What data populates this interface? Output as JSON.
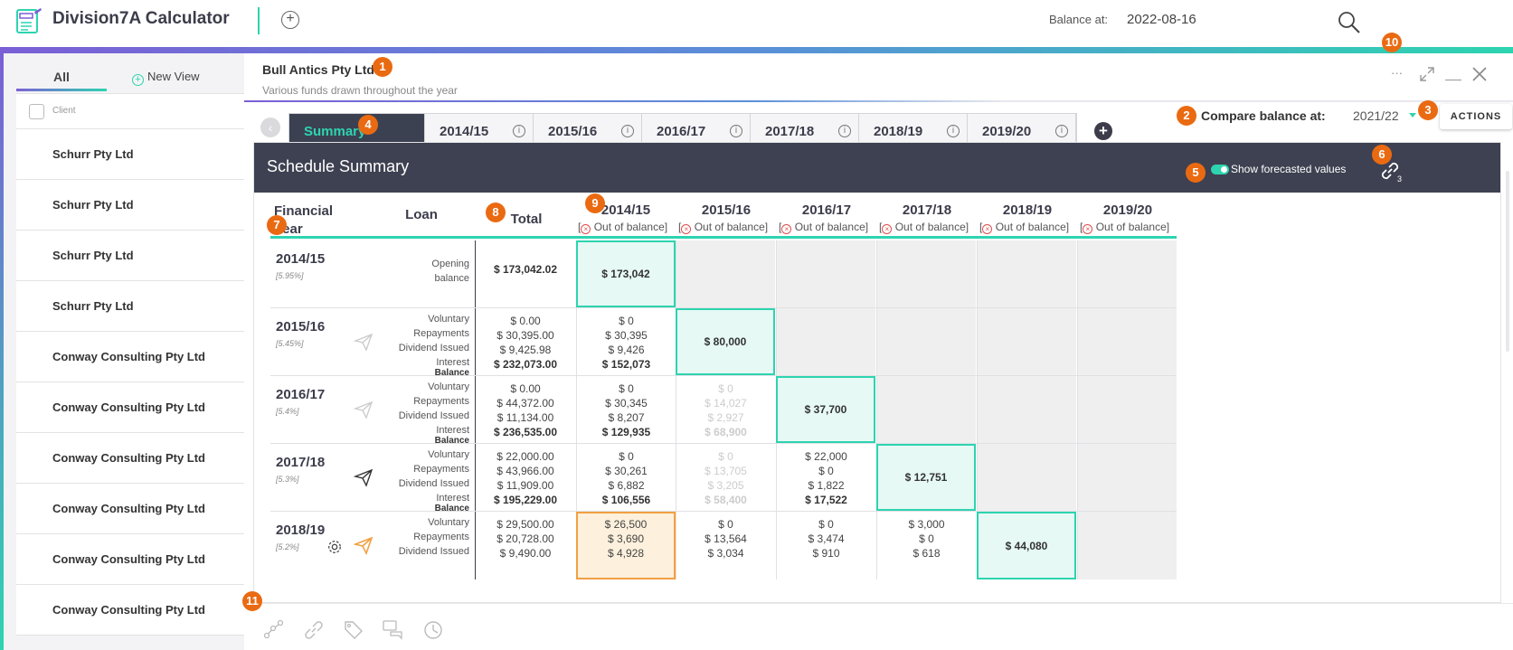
{
  "app": {
    "title": "Division7A Calculator",
    "balance_label": "Balance at:",
    "balance_value": "2022-08-16"
  },
  "sidebar": {
    "tab_all": "All",
    "tab_new": "New View",
    "column_label": "Client",
    "items": [
      "Schurr Pty Ltd",
      "Schurr Pty Ltd",
      "Schurr Pty Ltd",
      "Schurr Pty Ltd",
      "Conway Consulting Pty Ltd",
      "Conway Consulting Pty Ltd",
      "Conway Consulting Pty Ltd",
      "Conway Consulting Pty Ltd",
      "Conway Consulting Pty Ltd",
      "Conway Consulting Pty Ltd"
    ]
  },
  "document": {
    "title": "Bull Antics Pty Ltd",
    "subtitle": "Various funds drawn throughout the year",
    "more": "···"
  },
  "tabs": [
    "Summary",
    "2014/15",
    "2015/16",
    "2016/17",
    "2017/18",
    "2018/19",
    "2019/20"
  ],
  "compare": {
    "label": "Compare balance at:",
    "value": "2021/22"
  },
  "actions_label": "ACTIONS",
  "schedule": {
    "title": "Schedule Summary",
    "toggle_label": "Show forecasted values",
    "link_count": "3",
    "col_fy": "Financial Year",
    "col_loan": "Loan",
    "col_total": "Total",
    "year_cols": [
      "2014/15",
      "2015/16",
      "2016/17",
      "2017/18",
      "2018/19",
      "2019/20"
    ],
    "oob_label": "Out of balance]",
    "rows": [
      {
        "fy": "2014/15",
        "rate": "[5.95%]",
        "labels": [
          "Opening",
          "balance"
        ],
        "total": [
          "$ 173,042.02"
        ],
        "highlight": "$ 173,042"
      },
      {
        "fy": "2015/16",
        "rate": "[5.45%]",
        "labels": [
          "Voluntary",
          "Repayments",
          "Dividend Issued",
          "Interest",
          "Balance"
        ],
        "total": [
          "$ 0.00",
          "$ 30,395.00",
          "$ 9,425.98",
          "$ 232,073.00"
        ],
        "c1": [
          "$ 0",
          "$ 30,395",
          "$ 9,426",
          "$ 152,073"
        ],
        "highlight": "$ 80,000"
      },
      {
        "fy": "2016/17",
        "rate": "[5.4%]",
        "labels": [
          "Voluntary",
          "Repayments",
          "Dividend Issued",
          "Interest",
          "Balance"
        ],
        "total": [
          "$ 0.00",
          "$ 44,372.00",
          "$ 11,134.00",
          "$ 236,535.00"
        ],
        "c1": [
          "$ 0",
          "$ 30,345",
          "$ 8,207",
          "$ 129,935"
        ],
        "c2": [
          "$ 0",
          "$ 14,027",
          "$ 2,927",
          "$ 68,900"
        ],
        "highlight": "$ 37,700"
      },
      {
        "fy": "2017/18",
        "rate": "[5.3%]",
        "labels": [
          "Voluntary",
          "Repayments",
          "Dividend Issued",
          "Interest",
          "Balance"
        ],
        "total": [
          "$ 22,000.00",
          "$ 43,966.00",
          "$ 11,909.00",
          "$ 195,229.00"
        ],
        "c1": [
          "$ 0",
          "$ 30,261",
          "$ 6,882",
          "$ 106,556"
        ],
        "c2": [
          "$ 0",
          "$ 13,705",
          "$ 3,205",
          "$ 58,400"
        ],
        "c3": [
          "$ 22,000",
          "$ 0",
          "$ 1,822",
          "$ 17,522"
        ],
        "highlight": "$ 12,751"
      },
      {
        "fy": "2018/19",
        "rate": "[5.2%]",
        "labels": [
          "Voluntary",
          "Repayments",
          "Dividend Issued"
        ],
        "total": [
          "$ 29,500.00",
          "$ 20,728.00",
          "$ 9,490.00"
        ],
        "c1": [
          "$ 26,500",
          "$ 3,690",
          "$ 4,928"
        ],
        "c2": [
          "$ 0",
          "$ 13,564",
          "$ 3,034"
        ],
        "c3": [
          "$ 0",
          "$ 3,474",
          "$ 910"
        ],
        "c4": [
          "$ 3,000",
          "$ 0",
          "$ 618"
        ],
        "highlight": "$ 44,080"
      }
    ]
  },
  "badges": [
    "1",
    "2",
    "3",
    "4",
    "5",
    "6",
    "7",
    "8",
    "9",
    "10",
    "11"
  ],
  "colors": {
    "accent": "#2dd4b0",
    "purple": "#7b5fd6",
    "header_dark": "#3e4151",
    "badge": "#ea6a12",
    "warn": "#f2a043"
  }
}
